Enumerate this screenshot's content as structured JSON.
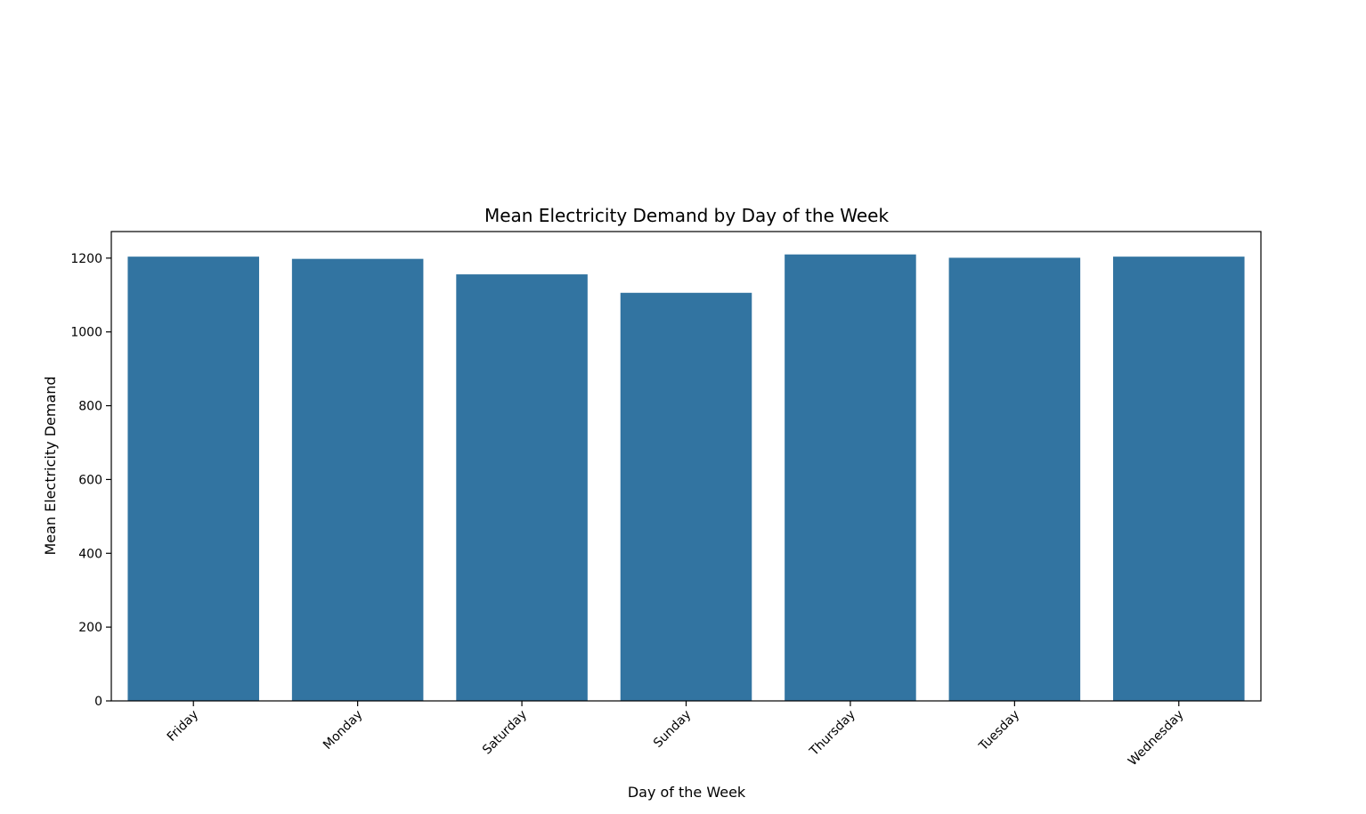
{
  "chart_data": {
    "type": "bar",
    "title": "Mean Electricity Demand by Day of the Week",
    "xlabel": "Day of the Week",
    "ylabel": "Mean Electricity Demand",
    "categories": [
      "Friday",
      "Monday",
      "Saturday",
      "Sunday",
      "Thursday",
      "Tuesday",
      "Wednesday"
    ],
    "values": [
      1204,
      1198,
      1156,
      1106,
      1210,
      1201,
      1204
    ],
    "ylim": [
      0,
      1272
    ],
    "yticks": [
      0,
      200,
      400,
      600,
      800,
      1000,
      1200
    ],
    "ytick_labels": [
      "0",
      "200",
      "400",
      "600",
      "800",
      "1000",
      "1200"
    ],
    "bar_color": "#3274a1",
    "grid": false,
    "legend": "none"
  }
}
